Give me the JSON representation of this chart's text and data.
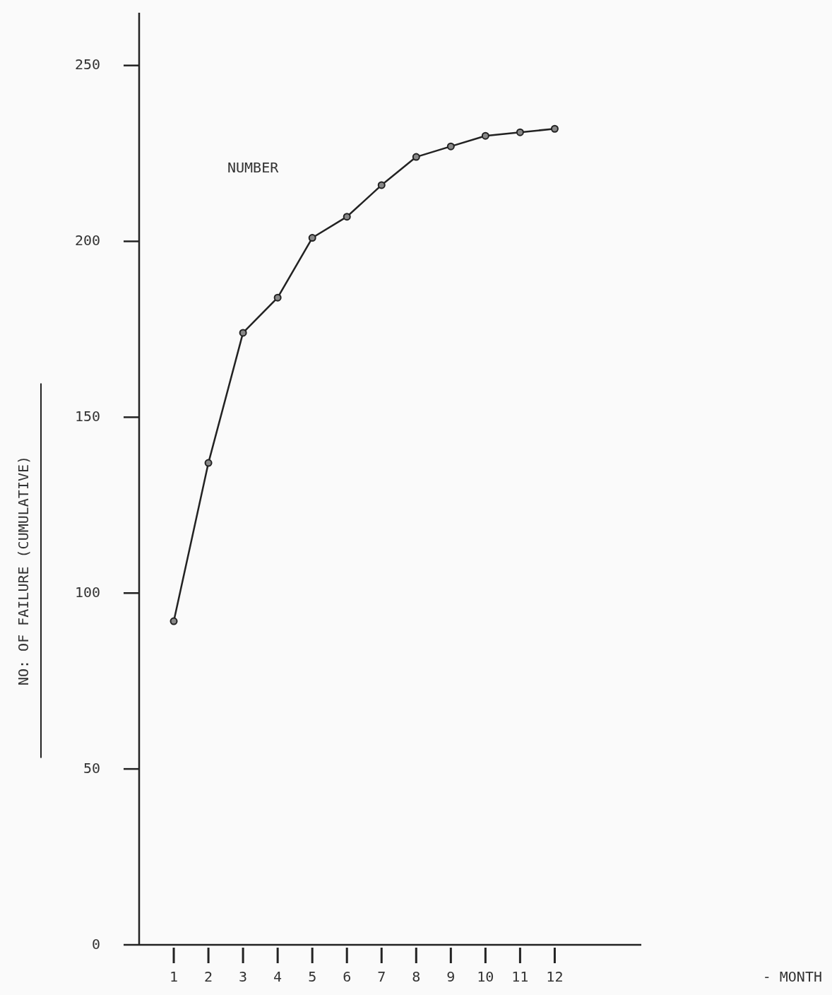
{
  "chart_data": {
    "type": "line",
    "ylabel": "NO: OF FAILURE  (CUMULATIVE)",
    "annotations": [
      "NUMBER",
      "- MONTH"
    ],
    "x": [
      1,
      2,
      3,
      4,
      5,
      6,
      7,
      8,
      9,
      10,
      11,
      12
    ],
    "series": [
      {
        "color": "#222222",
        "values": [
          92,
          137,
          174,
          184,
          201,
          207,
          216,
          224,
          227,
          230,
          231,
          232
        ]
      }
    ],
    "xlim": [
      0,
      14.5
    ],
    "xticks": [
      1,
      2,
      3,
      4,
      5,
      6,
      7,
      8,
      9,
      10,
      11,
      12
    ],
    "ylim": [
      0,
      265
    ],
    "yticks": [
      0,
      50,
      100,
      150,
      200,
      250
    ],
    "grid": false,
    "marker": "circle",
    "line_style": "solid"
  }
}
